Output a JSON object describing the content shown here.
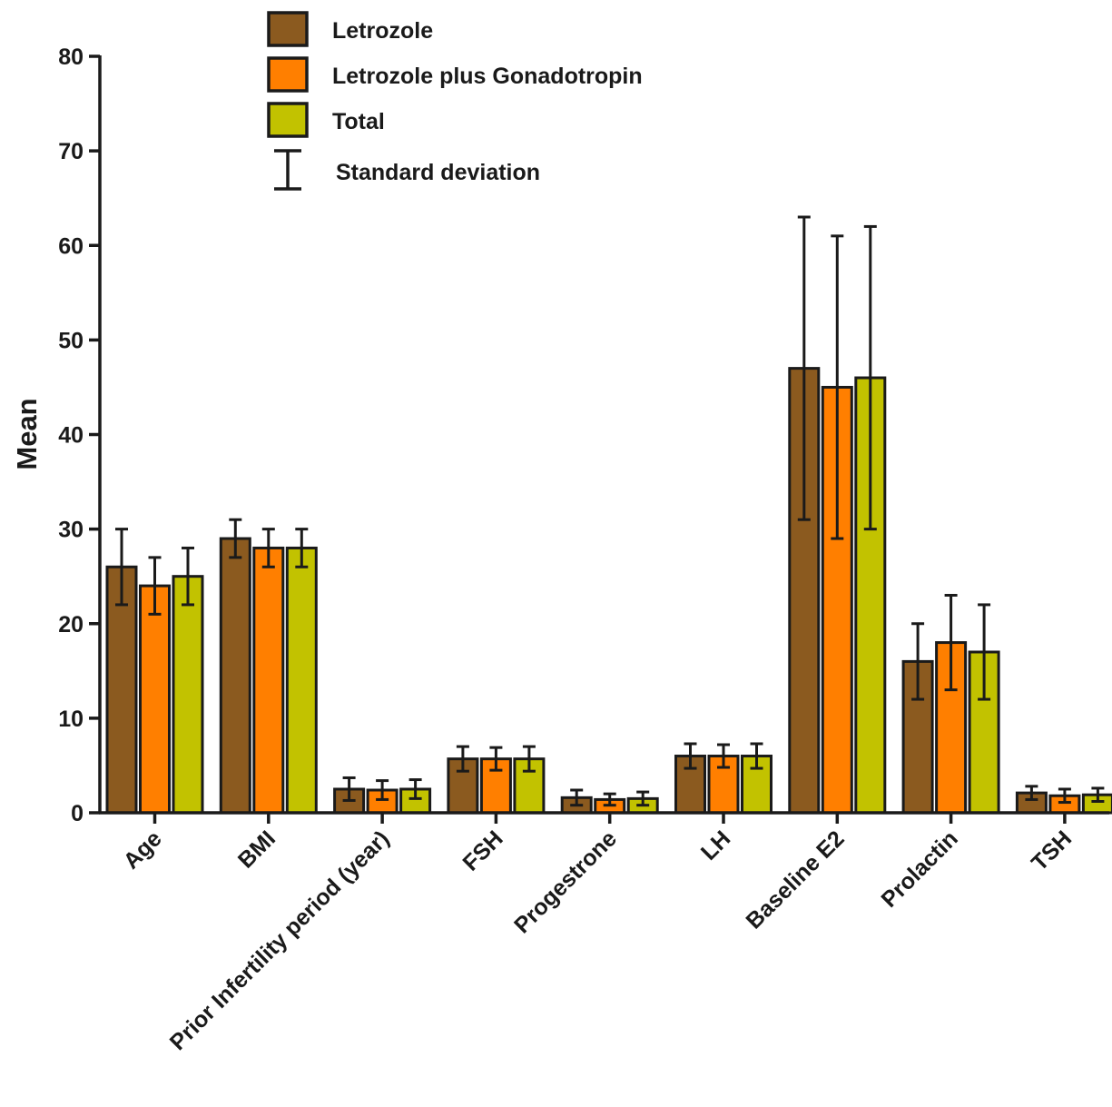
{
  "chart_data": {
    "type": "bar",
    "ylabel": "Mean",
    "ylim": [
      0,
      80
    ],
    "yticks": [
      0,
      10,
      20,
      30,
      40,
      50,
      60,
      70,
      80
    ],
    "categories": [
      "Age",
      "BMI",
      "Prior Infertility period (year)",
      "FSH",
      "Progestrone",
      "LH",
      "Baseline E2",
      "Prolactin",
      "TSH"
    ],
    "series": [
      {
        "name": "Letrozole",
        "color": "#8B5A1F",
        "values": [
          26,
          29,
          2.5,
          5.7,
          1.6,
          6,
          47,
          16,
          2.1
        ],
        "sd": [
          4,
          2,
          1.2,
          1.3,
          0.8,
          1.3,
          16,
          4,
          0.7
        ]
      },
      {
        "name": "Letrozole plus Gonadotropin",
        "color": "#FF7F00",
        "values": [
          24,
          28,
          2.4,
          5.7,
          1.4,
          6,
          45,
          18,
          1.8
        ],
        "sd": [
          3,
          2,
          1,
          1.2,
          0.6,
          1.2,
          16,
          5,
          0.7
        ]
      },
      {
        "name": "Total",
        "color": "#C2C200",
        "values": [
          25,
          28,
          2.5,
          5.7,
          1.5,
          6,
          46,
          17,
          1.9
        ],
        "sd": [
          3,
          2,
          1,
          1.3,
          0.7,
          1.3,
          16,
          5,
          0.7
        ]
      }
    ],
    "legend": {
      "position": "top-center",
      "error_bar_label": "Standard deviation"
    },
    "grid": false
  }
}
